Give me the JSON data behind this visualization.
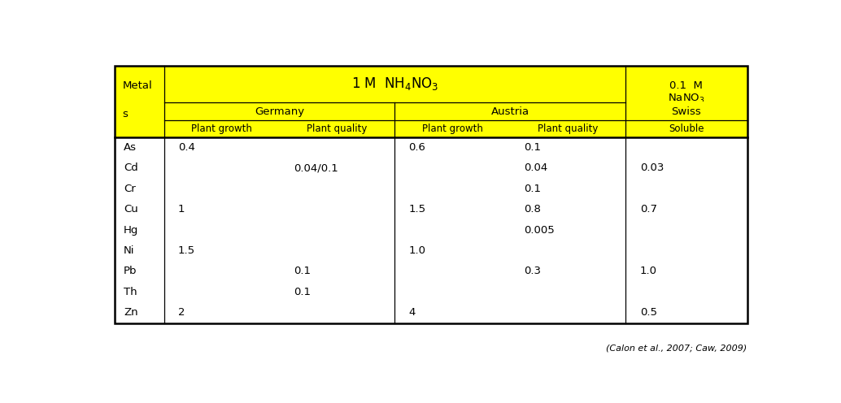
{
  "metals": [
    "As",
    "Cd",
    "Cr",
    "Cu",
    "Hg",
    "Ni",
    "Pb",
    "Th",
    "Zn"
  ],
  "cell_data": [
    [
      "0.4",
      "",
      "0.6",
      "0.1",
      ""
    ],
    [
      "",
      "0.04/0.1",
      "",
      "0.04",
      "0.03"
    ],
    [
      "",
      "",
      "",
      "0.1",
      ""
    ],
    [
      "1",
      "",
      "1.5",
      "0.8",
      "0.7"
    ],
    [
      "",
      "",
      "",
      "0.005",
      ""
    ],
    [
      "1.5",
      "",
      "1.0",
      "",
      ""
    ],
    [
      "",
      "0.1",
      "",
      "0.3",
      "1.0"
    ],
    [
      "",
      "0.1",
      "",
      "",
      ""
    ],
    [
      "2",
      "",
      "4",
      "",
      "0.5"
    ]
  ],
  "col_header_bottom": [
    "Plant growth",
    "Plant quality",
    "Plant growth",
    "Plant quality",
    "Soluble"
  ],
  "header_bg": "#FFFF00",
  "body_bg": "#FFFFFF",
  "border_color": "#000000",
  "text_color": "#000000",
  "citation": "(Calon et al., 2007; Caw, 2009)",
  "fig_width": 10.34,
  "fig_height": 4.96
}
